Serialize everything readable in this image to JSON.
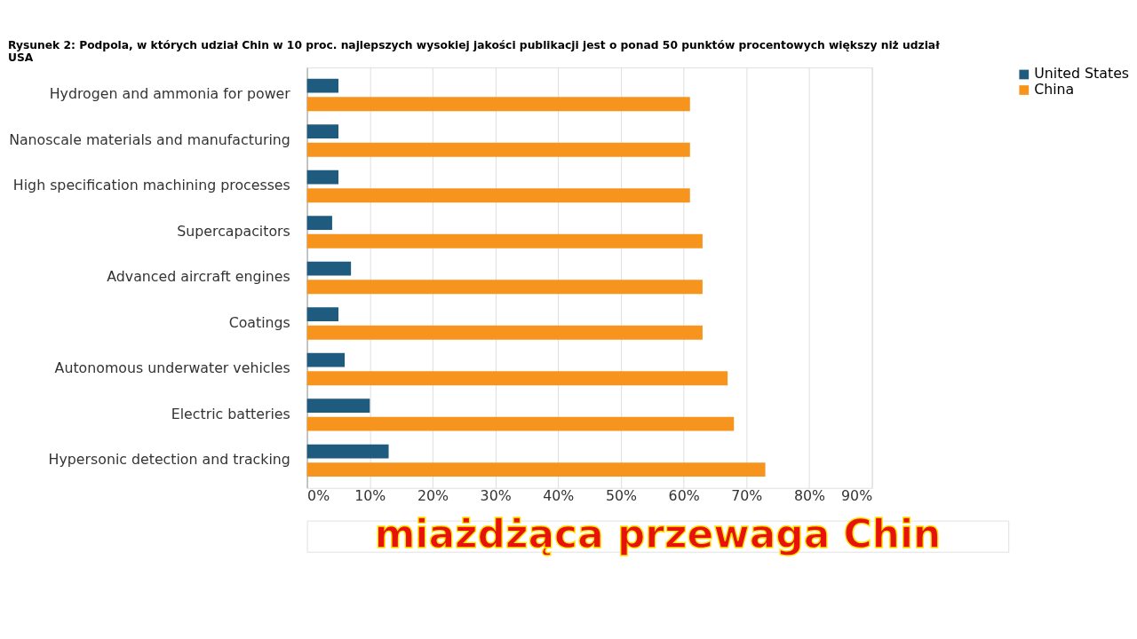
{
  "chart_data": {
    "type": "bar",
    "orientation": "horizontal",
    "title": "Rysunek 2: Podpola, w których udział Chin w 10 proc. najlepszych wysokiej jakości publikacji jest o ponad 50 punktów procentowych większy niż udział USA",
    "categories": [
      "Hydrogen and ammonia for power",
      "Nanoscale materials and manufacturing",
      "High specification machining processes",
      "Supercapacitors",
      "Advanced aircraft engines",
      "Coatings",
      "Autonomous underwater vehicles",
      "Electric batteries",
      "Hypersonic detection and tracking"
    ],
    "series": [
      {
        "name": "United States",
        "color": "#1f5b7e",
        "values": [
          5,
          5,
          5,
          4,
          7,
          5,
          6,
          10,
          13
        ]
      },
      {
        "name": "China",
        "color": "#f7941d",
        "values": [
          61,
          61,
          61,
          63,
          63,
          63,
          67,
          68,
          73
        ]
      }
    ],
    "xlim": [
      0,
      90
    ],
    "xticks": [
      {
        "value": 0,
        "label": "0%"
      },
      {
        "value": 10,
        "label": "10%"
      },
      {
        "value": 20,
        "label": "20%"
      },
      {
        "value": 30,
        "label": "30%"
      },
      {
        "value": 40,
        "label": "40%"
      },
      {
        "value": 50,
        "label": "50%"
      },
      {
        "value": 60,
        "label": "60%"
      },
      {
        "value": 70,
        "label": "70%"
      },
      {
        "value": 80,
        "label": "80%"
      },
      {
        "value": 90,
        "label": "90%"
      }
    ],
    "grid": "x",
    "legend": "right",
    "annotations": [
      "miażdżąca przewaga Chin"
    ]
  }
}
